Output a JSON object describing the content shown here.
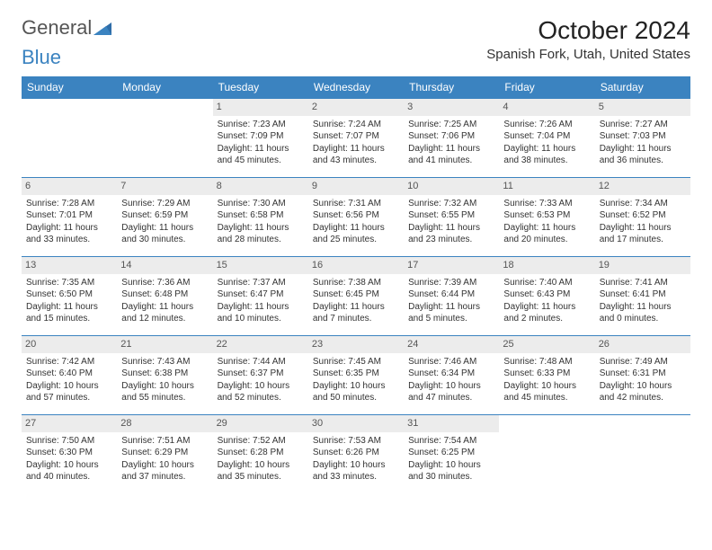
{
  "logo": {
    "part1": "General",
    "part2": "Blue"
  },
  "title": "October 2024",
  "location": "Spanish Fork, Utah, United States",
  "colors": {
    "header_bg": "#3b83c0",
    "header_text": "#ffffff",
    "border": "#3b83c0",
    "daynum_bg": "#ececec",
    "text": "#333333",
    "logo_blue": "#3b83c0"
  },
  "dayHeaders": [
    "Sunday",
    "Monday",
    "Tuesday",
    "Wednesday",
    "Thursday",
    "Friday",
    "Saturday"
  ],
  "weeks": [
    [
      null,
      null,
      {
        "n": "1",
        "sr": "Sunrise: 7:23 AM",
        "ss": "Sunset: 7:09 PM",
        "dl": "Daylight: 11 hours and 45 minutes."
      },
      {
        "n": "2",
        "sr": "Sunrise: 7:24 AM",
        "ss": "Sunset: 7:07 PM",
        "dl": "Daylight: 11 hours and 43 minutes."
      },
      {
        "n": "3",
        "sr": "Sunrise: 7:25 AM",
        "ss": "Sunset: 7:06 PM",
        "dl": "Daylight: 11 hours and 41 minutes."
      },
      {
        "n": "4",
        "sr": "Sunrise: 7:26 AM",
        "ss": "Sunset: 7:04 PM",
        "dl": "Daylight: 11 hours and 38 minutes."
      },
      {
        "n": "5",
        "sr": "Sunrise: 7:27 AM",
        "ss": "Sunset: 7:03 PM",
        "dl": "Daylight: 11 hours and 36 minutes."
      }
    ],
    [
      {
        "n": "6",
        "sr": "Sunrise: 7:28 AM",
        "ss": "Sunset: 7:01 PM",
        "dl": "Daylight: 11 hours and 33 minutes."
      },
      {
        "n": "7",
        "sr": "Sunrise: 7:29 AM",
        "ss": "Sunset: 6:59 PM",
        "dl": "Daylight: 11 hours and 30 minutes."
      },
      {
        "n": "8",
        "sr": "Sunrise: 7:30 AM",
        "ss": "Sunset: 6:58 PM",
        "dl": "Daylight: 11 hours and 28 minutes."
      },
      {
        "n": "9",
        "sr": "Sunrise: 7:31 AM",
        "ss": "Sunset: 6:56 PM",
        "dl": "Daylight: 11 hours and 25 minutes."
      },
      {
        "n": "10",
        "sr": "Sunrise: 7:32 AM",
        "ss": "Sunset: 6:55 PM",
        "dl": "Daylight: 11 hours and 23 minutes."
      },
      {
        "n": "11",
        "sr": "Sunrise: 7:33 AM",
        "ss": "Sunset: 6:53 PM",
        "dl": "Daylight: 11 hours and 20 minutes."
      },
      {
        "n": "12",
        "sr": "Sunrise: 7:34 AM",
        "ss": "Sunset: 6:52 PM",
        "dl": "Daylight: 11 hours and 17 minutes."
      }
    ],
    [
      {
        "n": "13",
        "sr": "Sunrise: 7:35 AM",
        "ss": "Sunset: 6:50 PM",
        "dl": "Daylight: 11 hours and 15 minutes."
      },
      {
        "n": "14",
        "sr": "Sunrise: 7:36 AM",
        "ss": "Sunset: 6:48 PM",
        "dl": "Daylight: 11 hours and 12 minutes."
      },
      {
        "n": "15",
        "sr": "Sunrise: 7:37 AM",
        "ss": "Sunset: 6:47 PM",
        "dl": "Daylight: 11 hours and 10 minutes."
      },
      {
        "n": "16",
        "sr": "Sunrise: 7:38 AM",
        "ss": "Sunset: 6:45 PM",
        "dl": "Daylight: 11 hours and 7 minutes."
      },
      {
        "n": "17",
        "sr": "Sunrise: 7:39 AM",
        "ss": "Sunset: 6:44 PM",
        "dl": "Daylight: 11 hours and 5 minutes."
      },
      {
        "n": "18",
        "sr": "Sunrise: 7:40 AM",
        "ss": "Sunset: 6:43 PM",
        "dl": "Daylight: 11 hours and 2 minutes."
      },
      {
        "n": "19",
        "sr": "Sunrise: 7:41 AM",
        "ss": "Sunset: 6:41 PM",
        "dl": "Daylight: 11 hours and 0 minutes."
      }
    ],
    [
      {
        "n": "20",
        "sr": "Sunrise: 7:42 AM",
        "ss": "Sunset: 6:40 PM",
        "dl": "Daylight: 10 hours and 57 minutes."
      },
      {
        "n": "21",
        "sr": "Sunrise: 7:43 AM",
        "ss": "Sunset: 6:38 PM",
        "dl": "Daylight: 10 hours and 55 minutes."
      },
      {
        "n": "22",
        "sr": "Sunrise: 7:44 AM",
        "ss": "Sunset: 6:37 PM",
        "dl": "Daylight: 10 hours and 52 minutes."
      },
      {
        "n": "23",
        "sr": "Sunrise: 7:45 AM",
        "ss": "Sunset: 6:35 PM",
        "dl": "Daylight: 10 hours and 50 minutes."
      },
      {
        "n": "24",
        "sr": "Sunrise: 7:46 AM",
        "ss": "Sunset: 6:34 PM",
        "dl": "Daylight: 10 hours and 47 minutes."
      },
      {
        "n": "25",
        "sr": "Sunrise: 7:48 AM",
        "ss": "Sunset: 6:33 PM",
        "dl": "Daylight: 10 hours and 45 minutes."
      },
      {
        "n": "26",
        "sr": "Sunrise: 7:49 AM",
        "ss": "Sunset: 6:31 PM",
        "dl": "Daylight: 10 hours and 42 minutes."
      }
    ],
    [
      {
        "n": "27",
        "sr": "Sunrise: 7:50 AM",
        "ss": "Sunset: 6:30 PM",
        "dl": "Daylight: 10 hours and 40 minutes."
      },
      {
        "n": "28",
        "sr": "Sunrise: 7:51 AM",
        "ss": "Sunset: 6:29 PM",
        "dl": "Daylight: 10 hours and 37 minutes."
      },
      {
        "n": "29",
        "sr": "Sunrise: 7:52 AM",
        "ss": "Sunset: 6:28 PM",
        "dl": "Daylight: 10 hours and 35 minutes."
      },
      {
        "n": "30",
        "sr": "Sunrise: 7:53 AM",
        "ss": "Sunset: 6:26 PM",
        "dl": "Daylight: 10 hours and 33 minutes."
      },
      {
        "n": "31",
        "sr": "Sunrise: 7:54 AM",
        "ss": "Sunset: 6:25 PM",
        "dl": "Daylight: 10 hours and 30 minutes."
      },
      null,
      null
    ]
  ]
}
